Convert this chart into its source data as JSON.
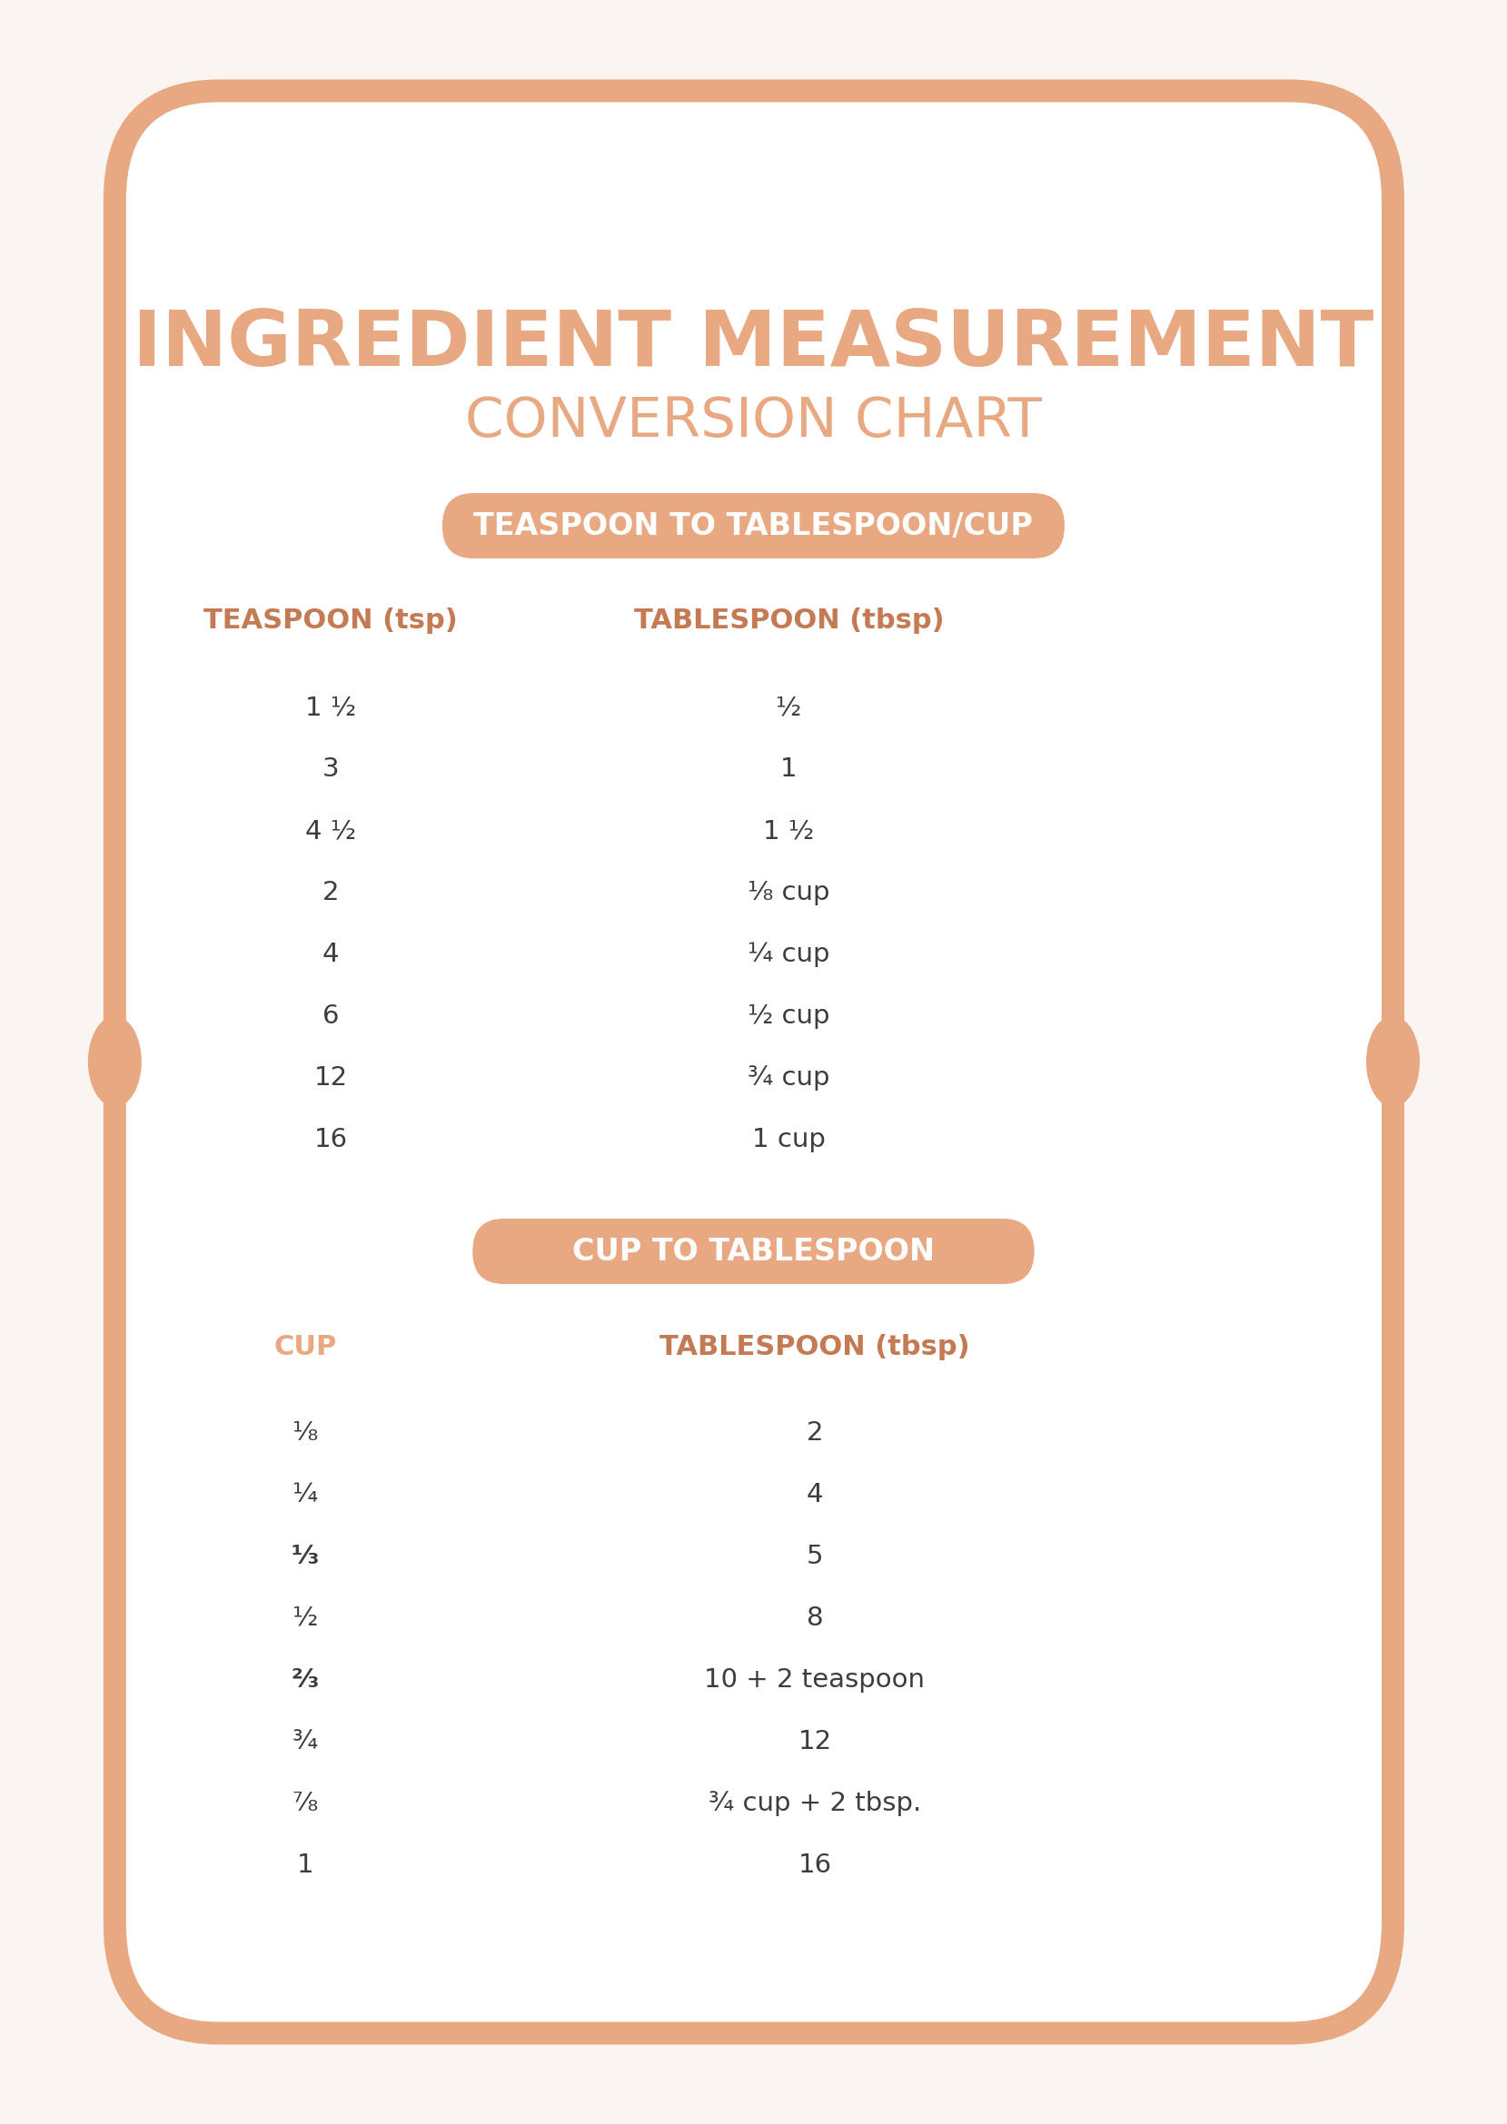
{
  "bg_color": "#faf5f0",
  "border_color": "#e8a882",
  "inner_bg": "#ffffff",
  "title_line1": "INGREDIENT MEASUREMENT",
  "title_line2": "CONVERSION CHART",
  "title_color": "#e8a882",
  "section1_header": "TEASPOON TO TABLESPOON/CUP",
  "section1_col1_header": "TEASPOON (tsp)",
  "section1_col2_header": "TABLESPOON (tbsp)",
  "section1_col1_color": "#c47a52",
  "section1_col2_color": "#c47a52",
  "section1_data": [
    [
      "1 ½",
      "½"
    ],
    [
      "3",
      "1"
    ],
    [
      "4 ½",
      "1 ½"
    ],
    [
      "2",
      "⅛ cup"
    ],
    [
      "4",
      "¼ cup"
    ],
    [
      "6",
      "½ cup"
    ],
    [
      "12",
      "¾ cup"
    ],
    [
      "16",
      "1 cup"
    ]
  ],
  "section2_header": "CUP TO TABLESPOON",
  "section2_col1_header": "CUP",
  "section2_col2_header": "TABLESPOON (tbsp)",
  "section2_col1_color": "#e8a882",
  "section2_col2_color": "#c47a52",
  "section2_data": [
    [
      "⅛",
      "2",
      false
    ],
    [
      "¼",
      "4",
      false
    ],
    [
      "⅓",
      "5",
      true
    ],
    [
      "½",
      "8",
      false
    ],
    [
      "⅔",
      "10 + 2 teaspoon",
      true
    ],
    [
      "¾",
      "12",
      false
    ],
    [
      "⅞",
      "¾ cup + 2 tbsp.",
      false
    ],
    [
      "1",
      "16",
      false
    ]
  ],
  "header_pill_color": "#e8a882",
  "header_pill_text_color": "#ffffff",
  "data_text_color": "#3d3d3d"
}
